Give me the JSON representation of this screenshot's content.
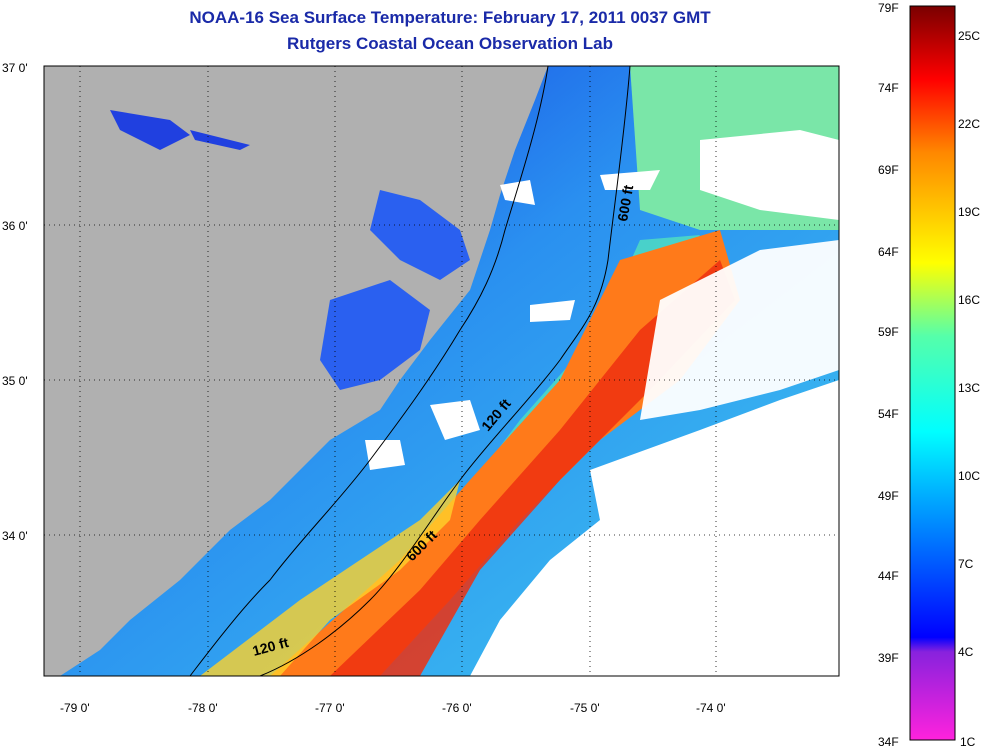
{
  "title": "NOAA-16 Sea Surface Temperature:  February 17, 2011 0037 GMT",
  "subtitle": "Rutgers Coastal Ocean Observation Lab",
  "lat_labels": [
    "37 0'",
    "36 0'",
    "35 0'",
    "34 0'"
  ],
  "lon_labels": [
    "-79 0'",
    "-78 0'",
    "-77 0'",
    "-76 0'",
    "-75 0'",
    "-74 0'"
  ],
  "colorbar": {
    "f_labels": [
      "79F",
      "74F",
      "69F",
      "64F",
      "59F",
      "54F",
      "49F",
      "44F",
      "39F",
      "34F"
    ],
    "c_labels": [
      "25C",
      "22C",
      "19C",
      "16C",
      "13C",
      "10C",
      "7C",
      "4C",
      "1C"
    ]
  },
  "contours": {
    "c600_north": "600 ft",
    "c120_mid": "120 ft",
    "c600_south": "600 ft",
    "c120_south": "120 ft"
  },
  "colors": {
    "land": "#b0b0b0",
    "title": "#1a2aa8",
    "cloud": "#ffffff"
  }
}
